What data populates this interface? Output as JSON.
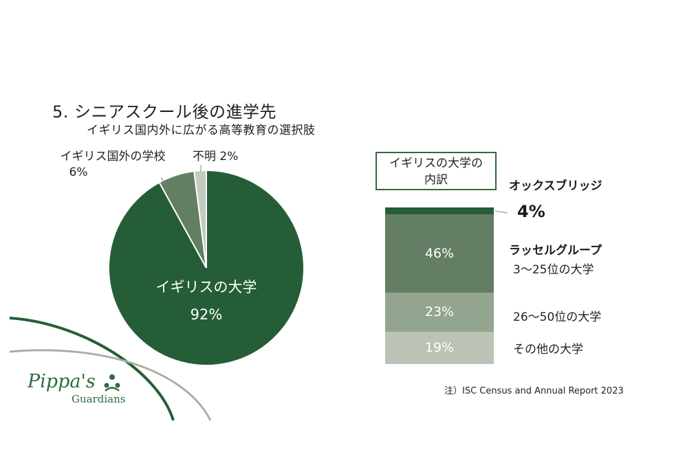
{
  "header": {
    "title": "5. シニアスクール後の進学先",
    "subtitle": "イギリス国内外に広がる高等教育の選択肢"
  },
  "chart_data": [
    {
      "type": "pie",
      "title": "",
      "slices": [
        {
          "label": "イギリスの大学",
          "value": 92,
          "value_label": "92%",
          "color": "#255e36"
        },
        {
          "label": "イギリス国外の学校",
          "value": 6,
          "value_label": "6%",
          "color": "#647e63"
        },
        {
          "label": "不明",
          "value": 2,
          "value_label": "2%",
          "color": "#c4cbc0"
        }
      ]
    },
    {
      "type": "bar",
      "stacked": true,
      "title": "イギリスの大学の内訳",
      "series": [
        {
          "name": "オックスブリッジ",
          "value": 4,
          "value_label": "4%",
          "color": "#255e36"
        },
        {
          "name": "ラッセルグループ",
          "sublabel": "3〜25位の大学",
          "value": 46,
          "value_label": "46%",
          "color": "#647e63"
        },
        {
          "name": "26〜50位の大学",
          "value": 23,
          "value_label": "23%",
          "color": "#93a48f"
        },
        {
          "name": "その他の大学",
          "value": 19,
          "value_label": "19%",
          "color": "#bac3b6"
        }
      ]
    }
  ],
  "labels": {
    "abroad_name": "イギリス国外の学校",
    "abroad_pct": "6%",
    "unknown": "不明 2%",
    "uk_name": "イギリスの大学",
    "uk_pct": "92%",
    "breakdown_line1": "イギリスの大学の",
    "breakdown_line2": "内訳",
    "oxbridge": "オックスブリッジ",
    "oxbridge_pct": "4%",
    "russell": "ラッセルグループ",
    "russell_sub": "3〜25位の大学",
    "mid": "26〜50位の大学",
    "other": "その他の大学"
  },
  "footer": {
    "source": "注）ISC Census and Annual Report 2023"
  },
  "logo": {
    "script": "Pippa's",
    "word": "Guardians"
  },
  "colors": {
    "dark_green": "#255e36",
    "mid_green": "#647e63",
    "light_green": "#93a48f",
    "pale_green": "#bac3b6",
    "grey": "#c4cbc0"
  }
}
